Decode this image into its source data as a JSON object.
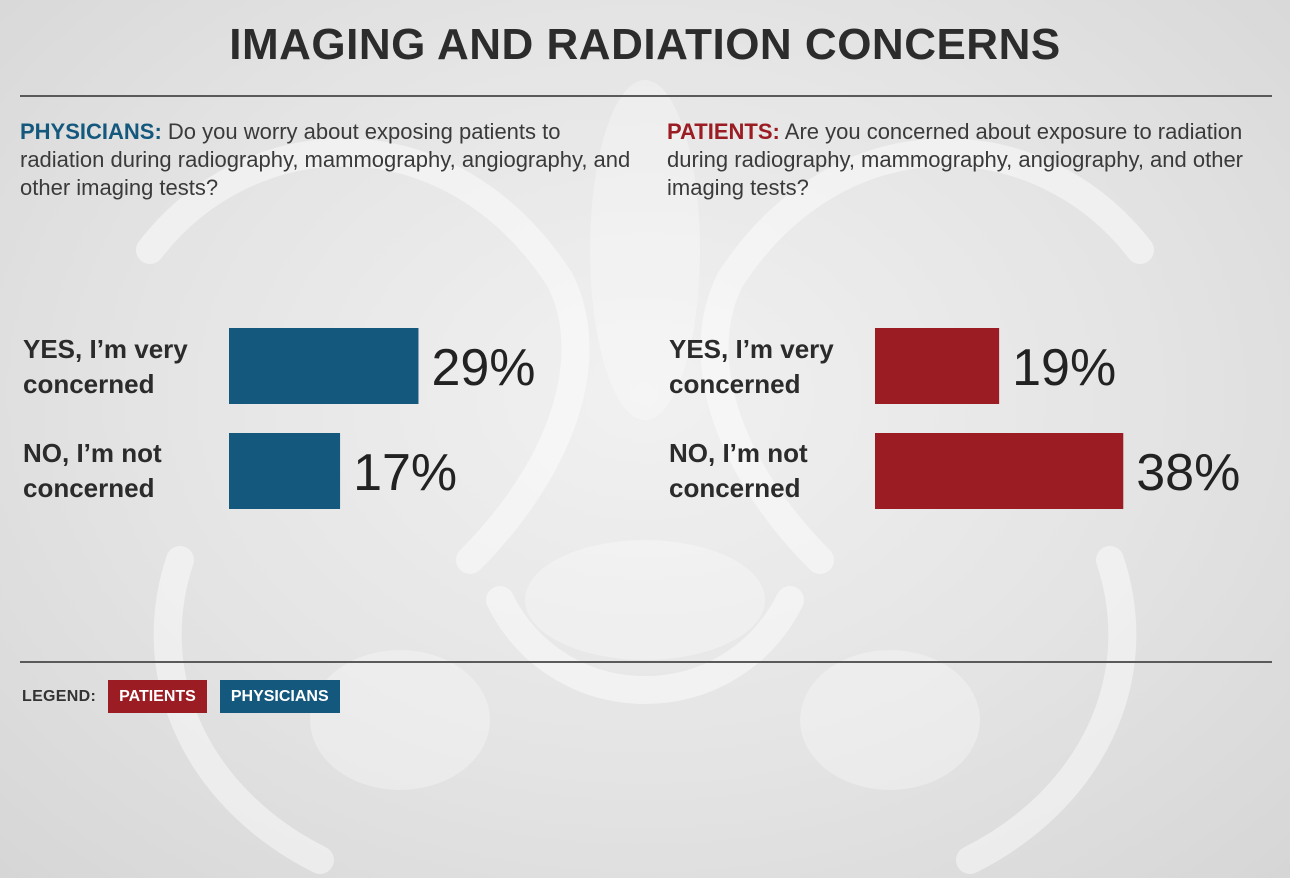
{
  "title": "IMAGING AND RADIATION CONCERNS",
  "colors": {
    "physicians": "#14587e",
    "patients": "#9b1c22"
  },
  "panels": [
    {
      "prefix": "PHYSICIANS:",
      "question": "Do you worry about exposing patients to radiation during radiography, mammography, angiography, and other imaging tests?"
    },
    {
      "prefix": "PATIENTS:",
      "question": "Are you concerned about exposure to radiation during radiography, mammography, angiography, and other imaging tests?"
    }
  ],
  "legend": {
    "label": "LEGEND:",
    "items": [
      {
        "name": "PATIENTS",
        "color": "#9b1c22"
      },
      {
        "name": "PHYSICIANS",
        "color": "#14587e"
      }
    ]
  },
  "chart_data": [
    {
      "type": "bar",
      "orientation": "horizontal",
      "categories": [
        "YES, I’m very\nconcerned",
        "NO, I’m not\nconcerned"
      ],
      "series": [
        {
          "name": "PHYSICIANS",
          "values": [
            29,
            17
          ]
        }
      ],
      "data_labels": [
        "29%",
        "17%"
      ],
      "color": "#14587e",
      "xlim": [
        0,
        60
      ]
    },
    {
      "type": "bar",
      "orientation": "horizontal",
      "categories": [
        "YES, I’m very\nconcerned",
        "NO, I’m not\nconcerned"
      ],
      "series": [
        {
          "name": "PATIENTS",
          "values": [
            19,
            38
          ]
        }
      ],
      "data_labels": [
        "19%",
        "38%"
      ],
      "color": "#9b1c22",
      "xlim": [
        0,
        60
      ]
    }
  ]
}
